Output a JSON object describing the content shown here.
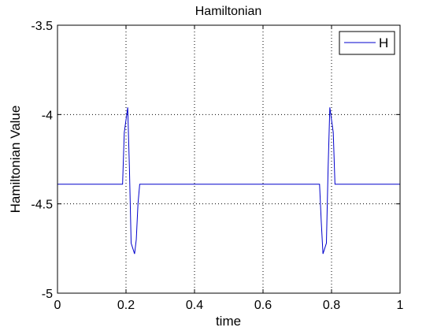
{
  "chart_data": {
    "type": "line",
    "title": "Hamiltonian",
    "xlabel": "time",
    "ylabel": "Hamiltonian Value",
    "xlim": [
      0,
      1
    ],
    "ylim": [
      -5,
      -3.5
    ],
    "xticks": [
      0,
      0.2,
      0.4,
      0.6,
      0.8,
      1
    ],
    "xtick_labels": [
      "0",
      "0.2",
      "0.4",
      "0.6",
      "0.8",
      "1"
    ],
    "yticks": [
      -5,
      -4.5,
      -4,
      -3.5
    ],
    "ytick_labels": [
      "-5",
      "-4.5",
      "-4",
      "-3.5"
    ],
    "grid": true,
    "legend_position": "top-right",
    "series": [
      {
        "name": "H",
        "color": "#0000cc",
        "x": [
          0,
          0.19,
          0.195,
          0.2,
          0.205,
          0.21,
          0.215,
          0.22,
          0.225,
          0.23,
          0.235,
          0.24,
          0.245,
          0.5,
          0.76,
          0.765,
          0.77,
          0.775,
          0.78,
          0.785,
          0.79,
          0.795,
          0.8,
          0.805,
          0.81,
          0.815,
          0.82,
          1.0
        ],
        "y": [
          -4.39,
          -4.39,
          -4.1,
          -4.03,
          -3.96,
          -4.3,
          -4.72,
          -4.75,
          -4.78,
          -4.7,
          -4.5,
          -4.39,
          -4.39,
          -4.39,
          -4.39,
          -4.39,
          -4.6,
          -4.78,
          -4.75,
          -4.72,
          -4.3,
          -3.96,
          -4.03,
          -4.1,
          -4.39,
          -4.39,
          -4.39,
          -4.39
        ]
      }
    ]
  }
}
